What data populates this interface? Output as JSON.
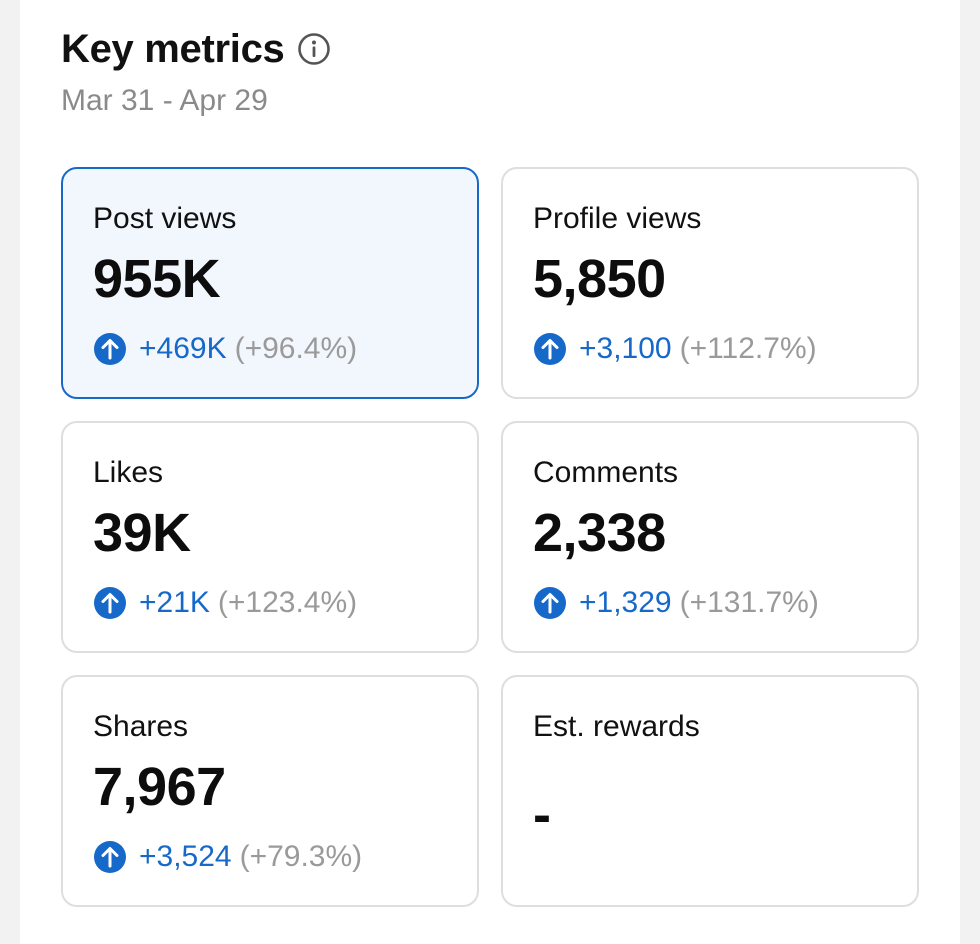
{
  "header": {
    "title": "Key metrics",
    "date_range": "Mar 31 - Apr 29"
  },
  "colors": {
    "accent": "#1769c9",
    "muted": "#9a9a9a",
    "border": "#dedede",
    "selected_bg": "#f2f7fd"
  },
  "metrics": [
    {
      "label": "Post views",
      "value": "955K",
      "change_abs": "+469K",
      "change_pct": "(+96.4%)",
      "selected": true
    },
    {
      "label": "Profile views",
      "value": "5,850",
      "change_abs": "+3,100",
      "change_pct": "(+112.7%)",
      "selected": false
    },
    {
      "label": "Likes",
      "value": "39K",
      "change_abs": "+21K",
      "change_pct": "(+123.4%)",
      "selected": false
    },
    {
      "label": "Comments",
      "value": "2,338",
      "change_abs": "+1,329",
      "change_pct": "(+131.7%)",
      "selected": false
    },
    {
      "label": "Shares",
      "value": "7,967",
      "change_abs": "+3,524",
      "change_pct": "(+79.3%)",
      "selected": false
    },
    {
      "label": "Est. rewards",
      "value": "-",
      "selected": false
    }
  ]
}
